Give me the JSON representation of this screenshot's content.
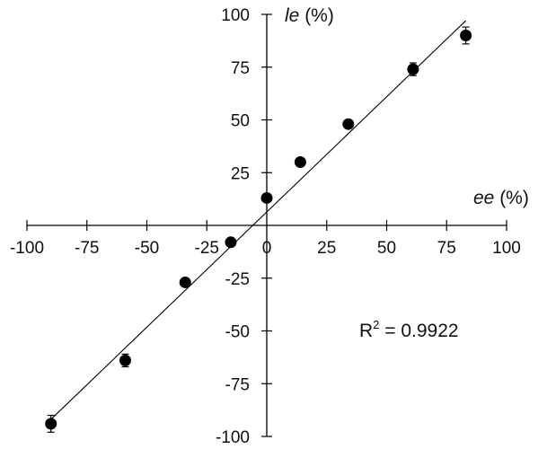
{
  "chart_data": {
    "type": "scatter",
    "xlabel": {
      "italic": "ee",
      "rest": " (%)"
    },
    "ylabel": {
      "italic": "le",
      "rest": " (%)"
    },
    "xlim": [
      -100,
      100
    ],
    "ylim": [
      -100,
      100
    ],
    "x_ticks": [
      -100,
      -75,
      -50,
      -25,
      0,
      25,
      50,
      75,
      100
    ],
    "y_ticks": [
      100,
      75,
      50,
      25,
      -25,
      -50,
      -75,
      -100
    ],
    "x_tick_labels": [
      "-100",
      "-75",
      "-50",
      "-25",
      "0",
      "25",
      "50",
      "75",
      "100"
    ],
    "y_tick_labels": [
      "100",
      "75",
      "50",
      "25",
      "-25",
      "-50",
      "-75",
      "-100"
    ],
    "points": [
      {
        "x": -90,
        "y": -94,
        "err": 4
      },
      {
        "x": -59,
        "y": -64,
        "err": 3
      },
      {
        "x": -34,
        "y": -27,
        "err": 1
      },
      {
        "x": -15,
        "y": -8,
        "err": 1
      },
      {
        "x": 0,
        "y": 13,
        "err": 1
      },
      {
        "x": 14,
        "y": 30,
        "err": 1
      },
      {
        "x": 34,
        "y": 48,
        "err": 1
      },
      {
        "x": 61,
        "y": 74,
        "err": 3
      },
      {
        "x": 83,
        "y": 90,
        "err": 4
      }
    ],
    "fit_line": {
      "x": [
        -91,
        83
      ],
      "y": [
        -93,
        97
      ]
    },
    "annotation": {
      "base": "R",
      "sup": "2",
      "rest": " = 0.9922"
    },
    "grid": false,
    "legend": "none"
  }
}
